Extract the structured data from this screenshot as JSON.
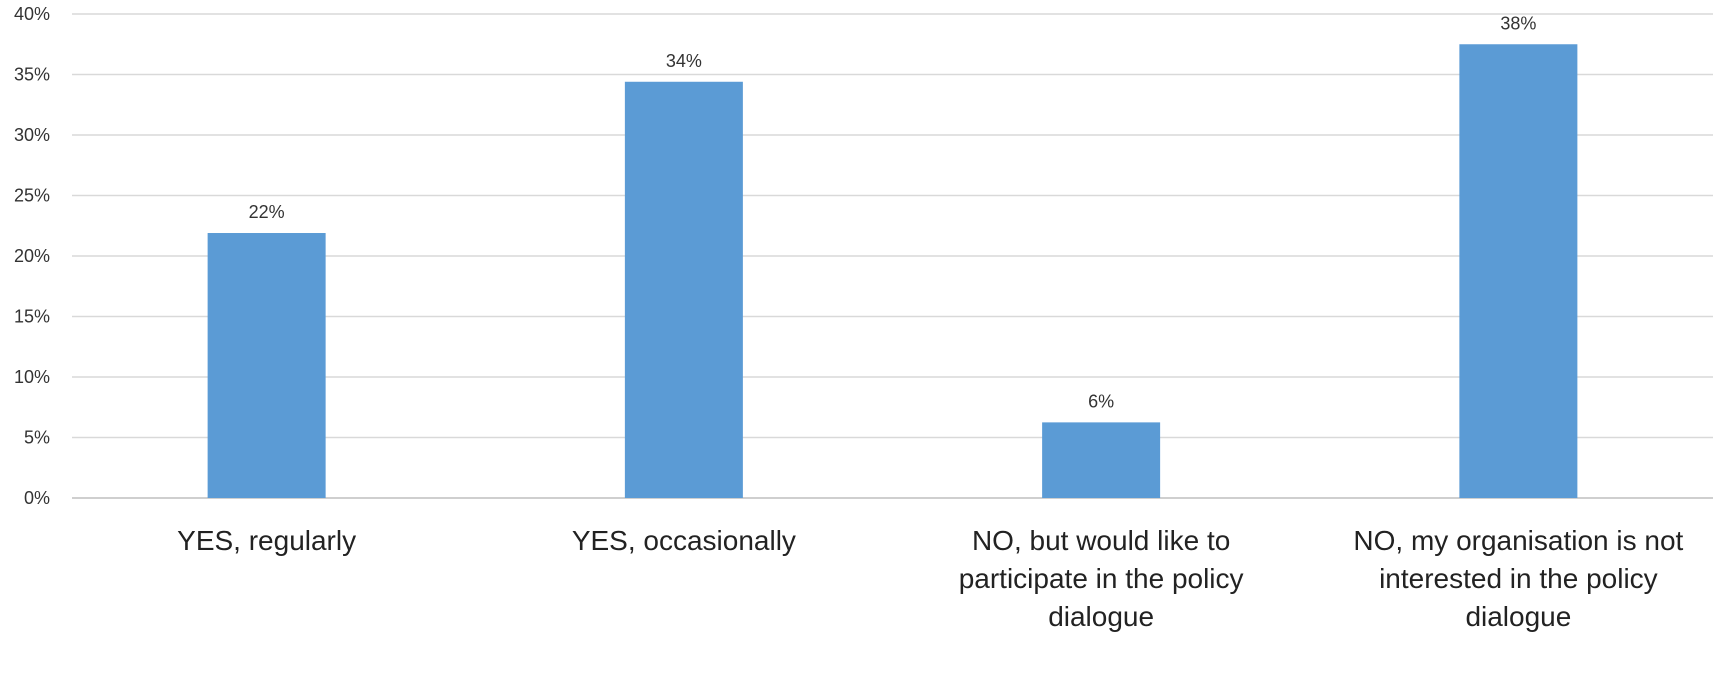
{
  "chart_data": {
    "type": "bar",
    "title": "",
    "xlabel": "",
    "ylabel": "",
    "categories": [
      [
        "YES, regularly"
      ],
      [
        "YES, occasionally"
      ],
      [
        "NO, but would like to",
        "participate in the policy",
        "dialogue"
      ],
      [
        "NO, my organisation is not",
        "interested in the policy",
        "dialogue"
      ]
    ],
    "values": [
      22,
      34,
      6,
      38
    ],
    "exact_values": [
      21.9,
      34.4,
      6.25,
      37.5
    ],
    "value_labels": [
      "22%",
      "34%",
      "6%",
      "38%"
    ],
    "ylim": [
      0,
      40
    ],
    "yticks": [
      0,
      5,
      10,
      15,
      20,
      25,
      30,
      35,
      40
    ],
    "ytick_labels": [
      "0%",
      "5%",
      "10%",
      "15%",
      "20%",
      "25%",
      "30%",
      "35%",
      "40%"
    ],
    "grid": true,
    "legend": "none",
    "bar_color": "#5b9bd5"
  }
}
